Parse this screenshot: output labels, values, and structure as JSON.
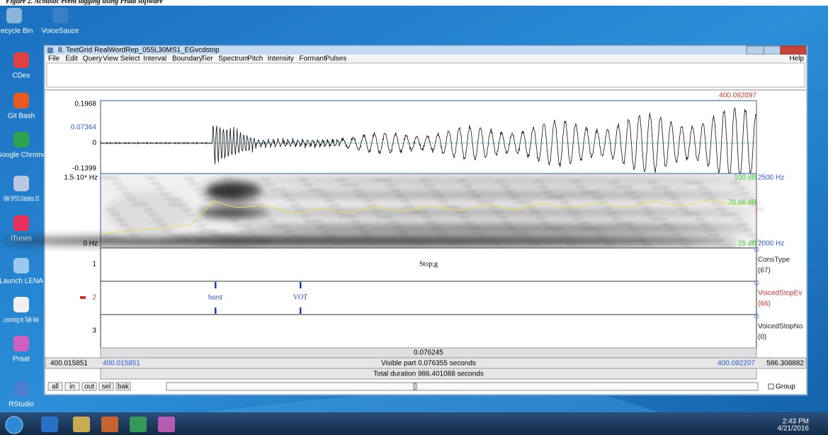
{
  "caption": "Figure 2. Acoustic event tagging using Praat software",
  "desktop_icons": [
    "Recycle Bin",
    "VoiceSauce",
    "CDex",
    "Git Bash",
    "Google Chrome",
    "IBM SPSS Statistics 20",
    "iTunes",
    "Launch LENA",
    "Learning to Talk link",
    "Praat",
    "RStudio"
  ],
  "window": {
    "title": "8. TextGrid RealWordRep_055L30MS1_EGvcdstop",
    "menu": [
      "File",
      "Edit",
      "Query",
      "View",
      "Select",
      "Interval",
      "Boundary",
      "Tier",
      "Spectrum",
      "Pitch",
      "Intensity",
      "Formant",
      "Pulses"
    ],
    "help": "Help",
    "waveform": {
      "time_end": "400.092097",
      "y_labels": [
        "0.1968",
        "0.07364",
        "0",
        "-0.1399"
      ]
    },
    "spectrogram": {
      "freq_top": "1.5·10⁴ Hz",
      "freq_bottom": "0 Hz",
      "db_top": "100 dB",
      "pitch_top": "2500 Hz",
      "db_mid": "70.66 dB",
      "db_bottom": "25 dB",
      "pitch_bottom": "2000 Hz"
    },
    "tiers": [
      {
        "number": "1",
        "name": "ConsType",
        "count": "(67)",
        "labels": [
          "Stop;g"
        ]
      },
      {
        "number": "2",
        "name": "VoicedStopEv",
        "count": "(66)",
        "labels": [
          "burst",
          "VOT"
        ]
      },
      {
        "number": "3",
        "name": "VoicedStopNo",
        "count": "(0)"
      }
    ],
    "selection_duration": "0.076245",
    "status": {
      "left_total": "400.015851",
      "left_visible": "400.015851",
      "visible": "Visible part 0.076355 seconds",
      "right_visible": "400.092207",
      "right_total": "586.308882",
      "total": "Total duration 986.401088 seconds"
    },
    "buttons": [
      "all",
      "in",
      "out",
      "sel",
      "bak"
    ],
    "group": "Group"
  },
  "taskbar": {
    "time": "2:43 PM",
    "date": "4/21/2016"
  }
}
